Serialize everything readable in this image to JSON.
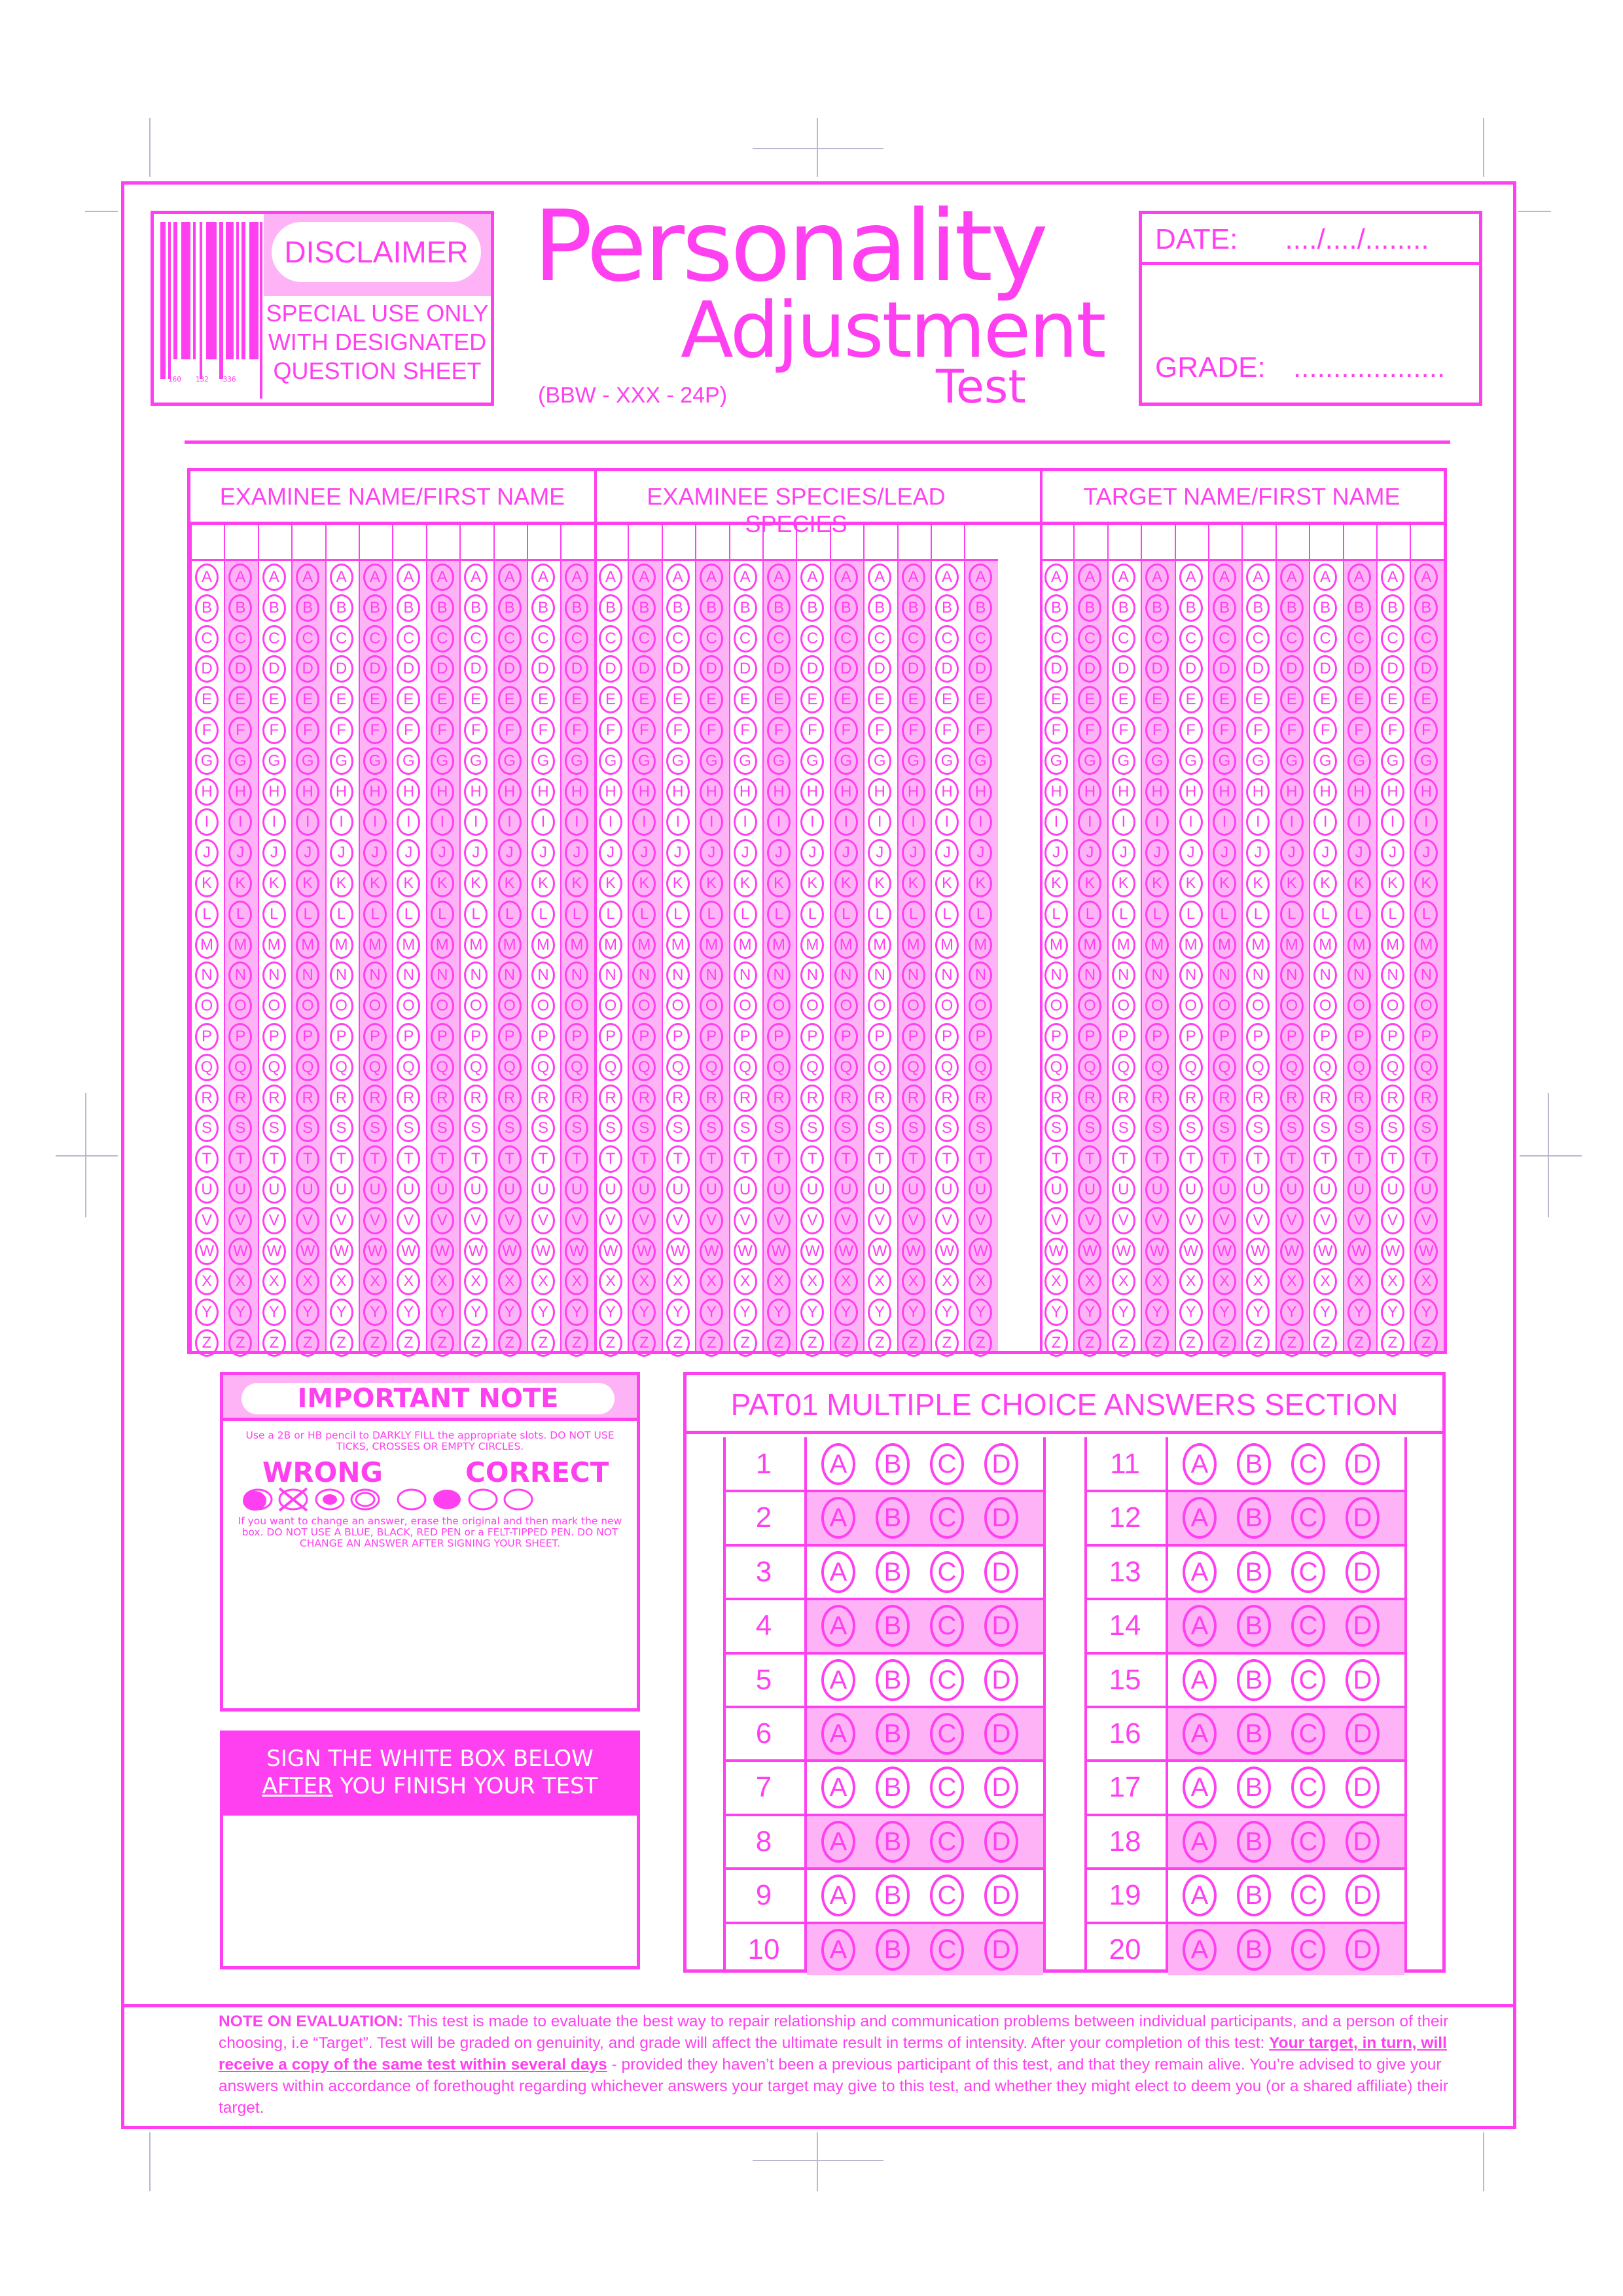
{
  "barcode": {
    "digits": [
      "160",
      "132",
      "336"
    ]
  },
  "disclaimer": {
    "title": "DISCLAIMER",
    "lines": [
      "SPECIAL USE ONLY",
      "WITH DESIGNATED",
      "QUESTION SHEET"
    ]
  },
  "title": {
    "line1": "Personality",
    "line2": "Adjustment",
    "line3": "Test",
    "code": "(BBW - XXX - 24P)"
  },
  "date_grade": {
    "date_label": "DATE:",
    "date_value": "..../..../........",
    "grade_label": "GRADE:",
    "grade_value": "..................."
  },
  "name_grid": {
    "headers": [
      "EXAMINEE NAME/FIRST NAME",
      "EXAMINEE SPECIES/LEAD SPECIES",
      "TARGET NAME/FIRST NAME"
    ],
    "columns_per_section": 12,
    "letters": [
      "A",
      "B",
      "C",
      "D",
      "E",
      "F",
      "G",
      "H",
      "I",
      "J",
      "K",
      "L",
      "M",
      "N",
      "O",
      "P",
      "Q",
      "R",
      "S",
      "T",
      "U",
      "V",
      "W",
      "X",
      "Y",
      "Z"
    ]
  },
  "important_note": {
    "title": "IMPORTANT NOTE",
    "instruction": "Use a 2B or HB pencil to DARKLY FILL the appropriate slots. DO NOT USE TICKS, CROSSES OR EMPTY CIRCLES.",
    "wrong_label": "WRONG",
    "correct_label": "CORRECT",
    "change_note": "If you want to change an answer, erase the original and then mark the new box. DO NOT USE A BLUE, BLACK, RED PEN or a FELT-TIPPED PEN. DO NOT CHANGE AN ANSWER AFTER SIGNING YOUR SHEET."
  },
  "sign_box": {
    "line1": "SIGN THE WHITE BOX BELOW",
    "after": "AFTER",
    "line2_rest": " YOU FINISH YOUR TEST"
  },
  "answers": {
    "title": "PAT01 MULTIPLE CHOICE ANSWERS SECTION",
    "numbers": [
      "1",
      "2",
      "3",
      "4",
      "5",
      "6",
      "7",
      "8",
      "9",
      "10",
      "11",
      "12",
      "13",
      "14",
      "15",
      "16",
      "17",
      "18",
      "19",
      "20"
    ],
    "options": [
      "A",
      "B",
      "C",
      "D"
    ]
  },
  "evaluation": {
    "label": "NOTE ON EVALUATION:",
    "text1": " This test is made to evaluate the best way to repair relationship and communication problems between individual participants, and a person of their choosing, i.e “Target”. Test will be graded on genuinity, and grade will affect the ultimate result in terms of intensity. After your completion of this test: ",
    "underlined": "Your target, in turn, will receive a copy of the same test within several days",
    "text2": " - provided they haven’t been a previous participant of this test, and that they remain alive. You’re advised to give your answers within accordance of forethought regarding whichever answers your target may give to this test, and whether they might elect to deem you (or a shared affiliate) their target."
  },
  "colors": {
    "accent": "#ff40f0",
    "light": "#ffb3f7"
  }
}
